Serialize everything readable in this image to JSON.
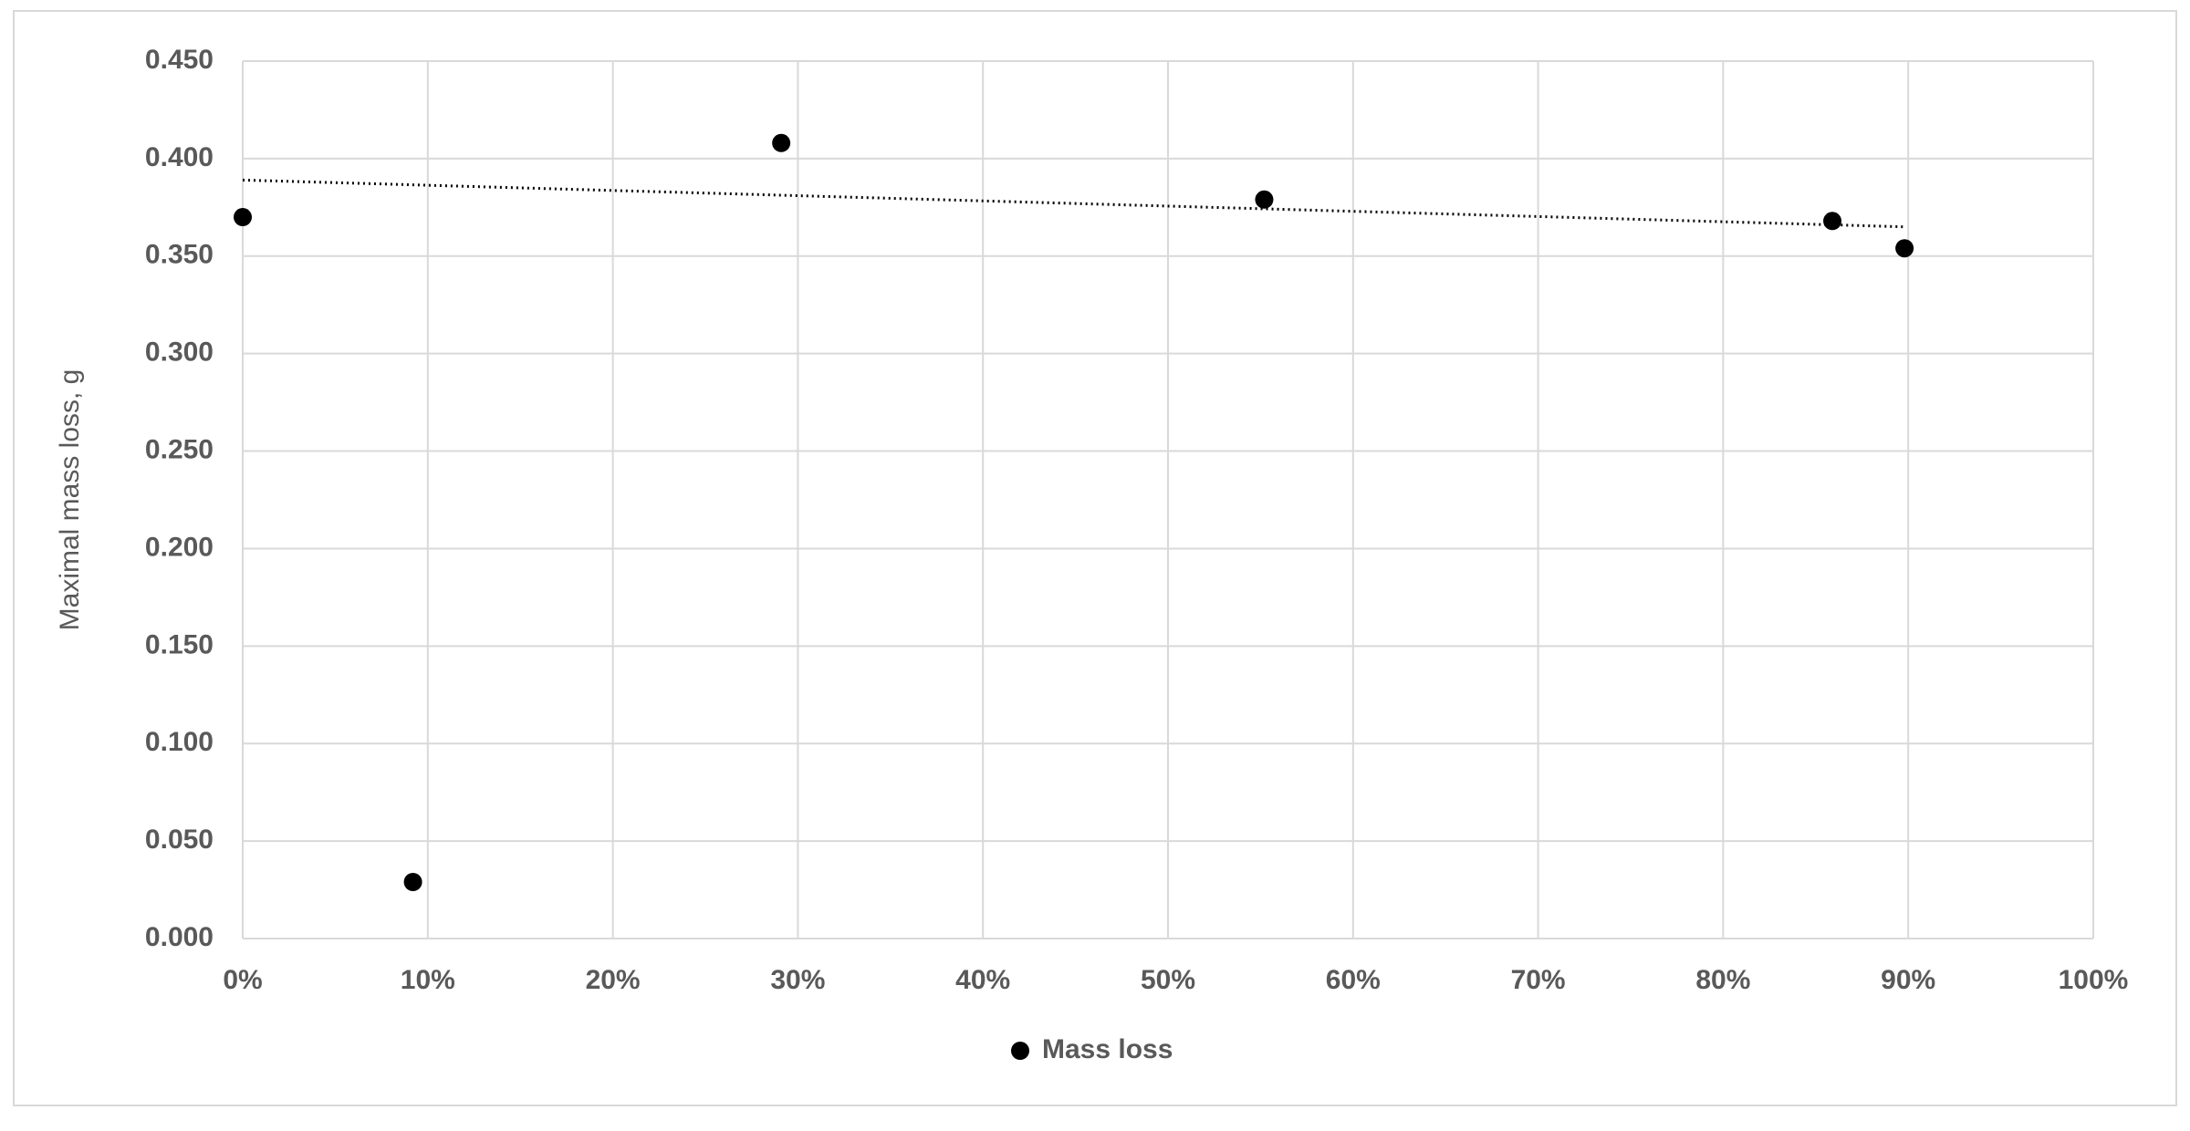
{
  "chart_data": {
    "type": "scatter",
    "y_label": "Maximal mass loss, g",
    "series": [
      {
        "name": "Mass loss",
        "color": "#000000",
        "x": [
          0,
          9.2,
          29.1,
          55.2,
          85.9,
          89.8
        ],
        "values": [
          0.37,
          0.029,
          0.408,
          0.379,
          0.368,
          0.354
        ]
      }
    ],
    "trendline": {
      "color": "#000000",
      "x": [
        0,
        89.8
      ],
      "values": [
        0.389,
        0.365
      ]
    },
    "xlim": [
      0,
      100
    ],
    "xticks": [
      {
        "value": 0,
        "label": "0%"
      },
      {
        "value": 10,
        "label": "10%"
      },
      {
        "value": 20,
        "label": "20%"
      },
      {
        "value": 30,
        "label": "30%"
      },
      {
        "value": 40,
        "label": "40%"
      },
      {
        "value": 50,
        "label": "50%"
      },
      {
        "value": 60,
        "label": "60%"
      },
      {
        "value": 70,
        "label": "70%"
      },
      {
        "value": 80,
        "label": "80%"
      },
      {
        "value": 90,
        "label": "90%"
      },
      {
        "value": 100,
        "label": "100%"
      }
    ],
    "ylim": [
      0,
      0.45
    ],
    "yticks": [
      {
        "value": 0,
        "label": "0.000"
      },
      {
        "value": 0.05,
        "label": "0.050"
      },
      {
        "value": 0.1,
        "label": "0.100"
      },
      {
        "value": 0.15,
        "label": "0.150"
      },
      {
        "value": 0.2,
        "label": "0.200"
      },
      {
        "value": 0.25,
        "label": "0.250"
      },
      {
        "value": 0.3,
        "label": "0.300"
      },
      {
        "value": 0.35,
        "label": "0.350"
      },
      {
        "value": 0.4,
        "label": "0.400"
      },
      {
        "value": 0.45,
        "label": "0.450"
      }
    ],
    "grid": true,
    "legend": "bottom"
  }
}
